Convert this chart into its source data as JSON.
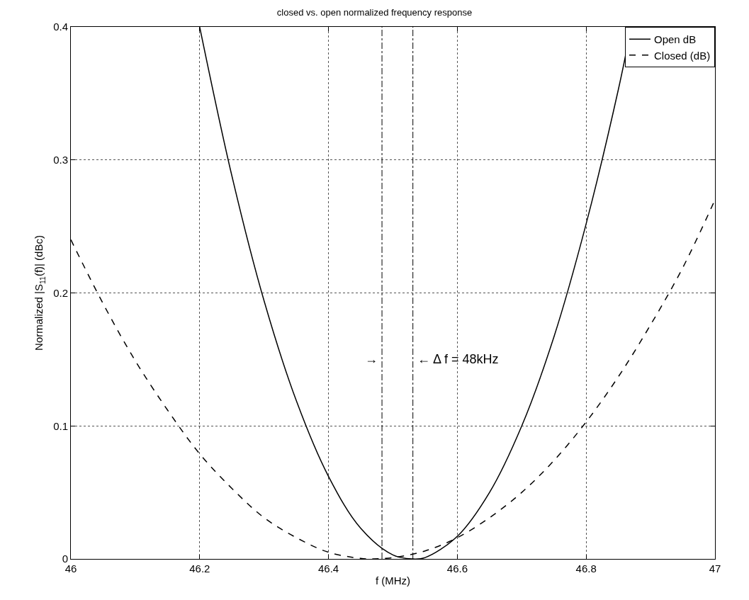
{
  "chart_data": {
    "type": "line",
    "title": "closed vs. open normalized frequency response",
    "xlabel": "f (MHz)",
    "ylabel": "Normalized |S$_{11}$(f)| (dBc)",
    "series": [
      {
        "name": "Open dB",
        "color": "#000000",
        "line_style": "solid",
        "x": [
          46.2,
          46.25,
          46.3,
          46.35,
          46.4,
          46.45,
          46.5,
          46.53,
          46.55,
          46.6,
          46.65,
          46.7,
          46.75,
          46.8,
          46.85,
          46.87
        ],
        "values": [
          0.4,
          0.288,
          0.194,
          0.119,
          0.062,
          0.023,
          0.003,
          0,
          0.001,
          0.017,
          0.05,
          0.1,
          0.167,
          0.252,
          0.353,
          0.4
        ]
      },
      {
        "name": "Closed (dB)",
        "color": "#000000",
        "line_style": "dashed",
        "x": [
          46.0,
          46.05,
          46.1,
          46.15,
          46.2,
          46.25,
          46.3,
          46.35,
          46.4,
          46.45,
          46.47,
          46.5,
          46.55,
          46.6,
          46.65,
          46.7,
          46.75,
          46.8,
          46.85,
          46.9,
          46.95,
          47.0
        ],
        "values": [
          0.24,
          0.192,
          0.149,
          0.112,
          0.079,
          0.053,
          0.031,
          0.016,
          0.005,
          0.0004,
          0,
          0.001,
          0.006,
          0.016,
          0.031,
          0.05,
          0.074,
          0.103,
          0.137,
          0.176,
          0.219,
          0.27
        ]
      }
    ],
    "ref_lines": [
      {
        "axis": "x",
        "value": 46.483,
        "color": "#000000",
        "line_style": "dashdot"
      },
      {
        "axis": "x",
        "value": 46.531,
        "color": "#000000",
        "line_style": "dashdot"
      }
    ],
    "annotations": [
      "→",
      "← Δ f = 48kHz"
    ],
    "xlim": [
      46,
      47
    ],
    "xticks": [
      46,
      46.2,
      46.4,
      46.6,
      46.8,
      47
    ],
    "ylim": [
      0,
      0.4
    ],
    "yticks": [
      0,
      0.1,
      0.2,
      0.3,
      0.4
    ],
    "grid": true,
    "legend": "top right",
    "marker": "none"
  }
}
